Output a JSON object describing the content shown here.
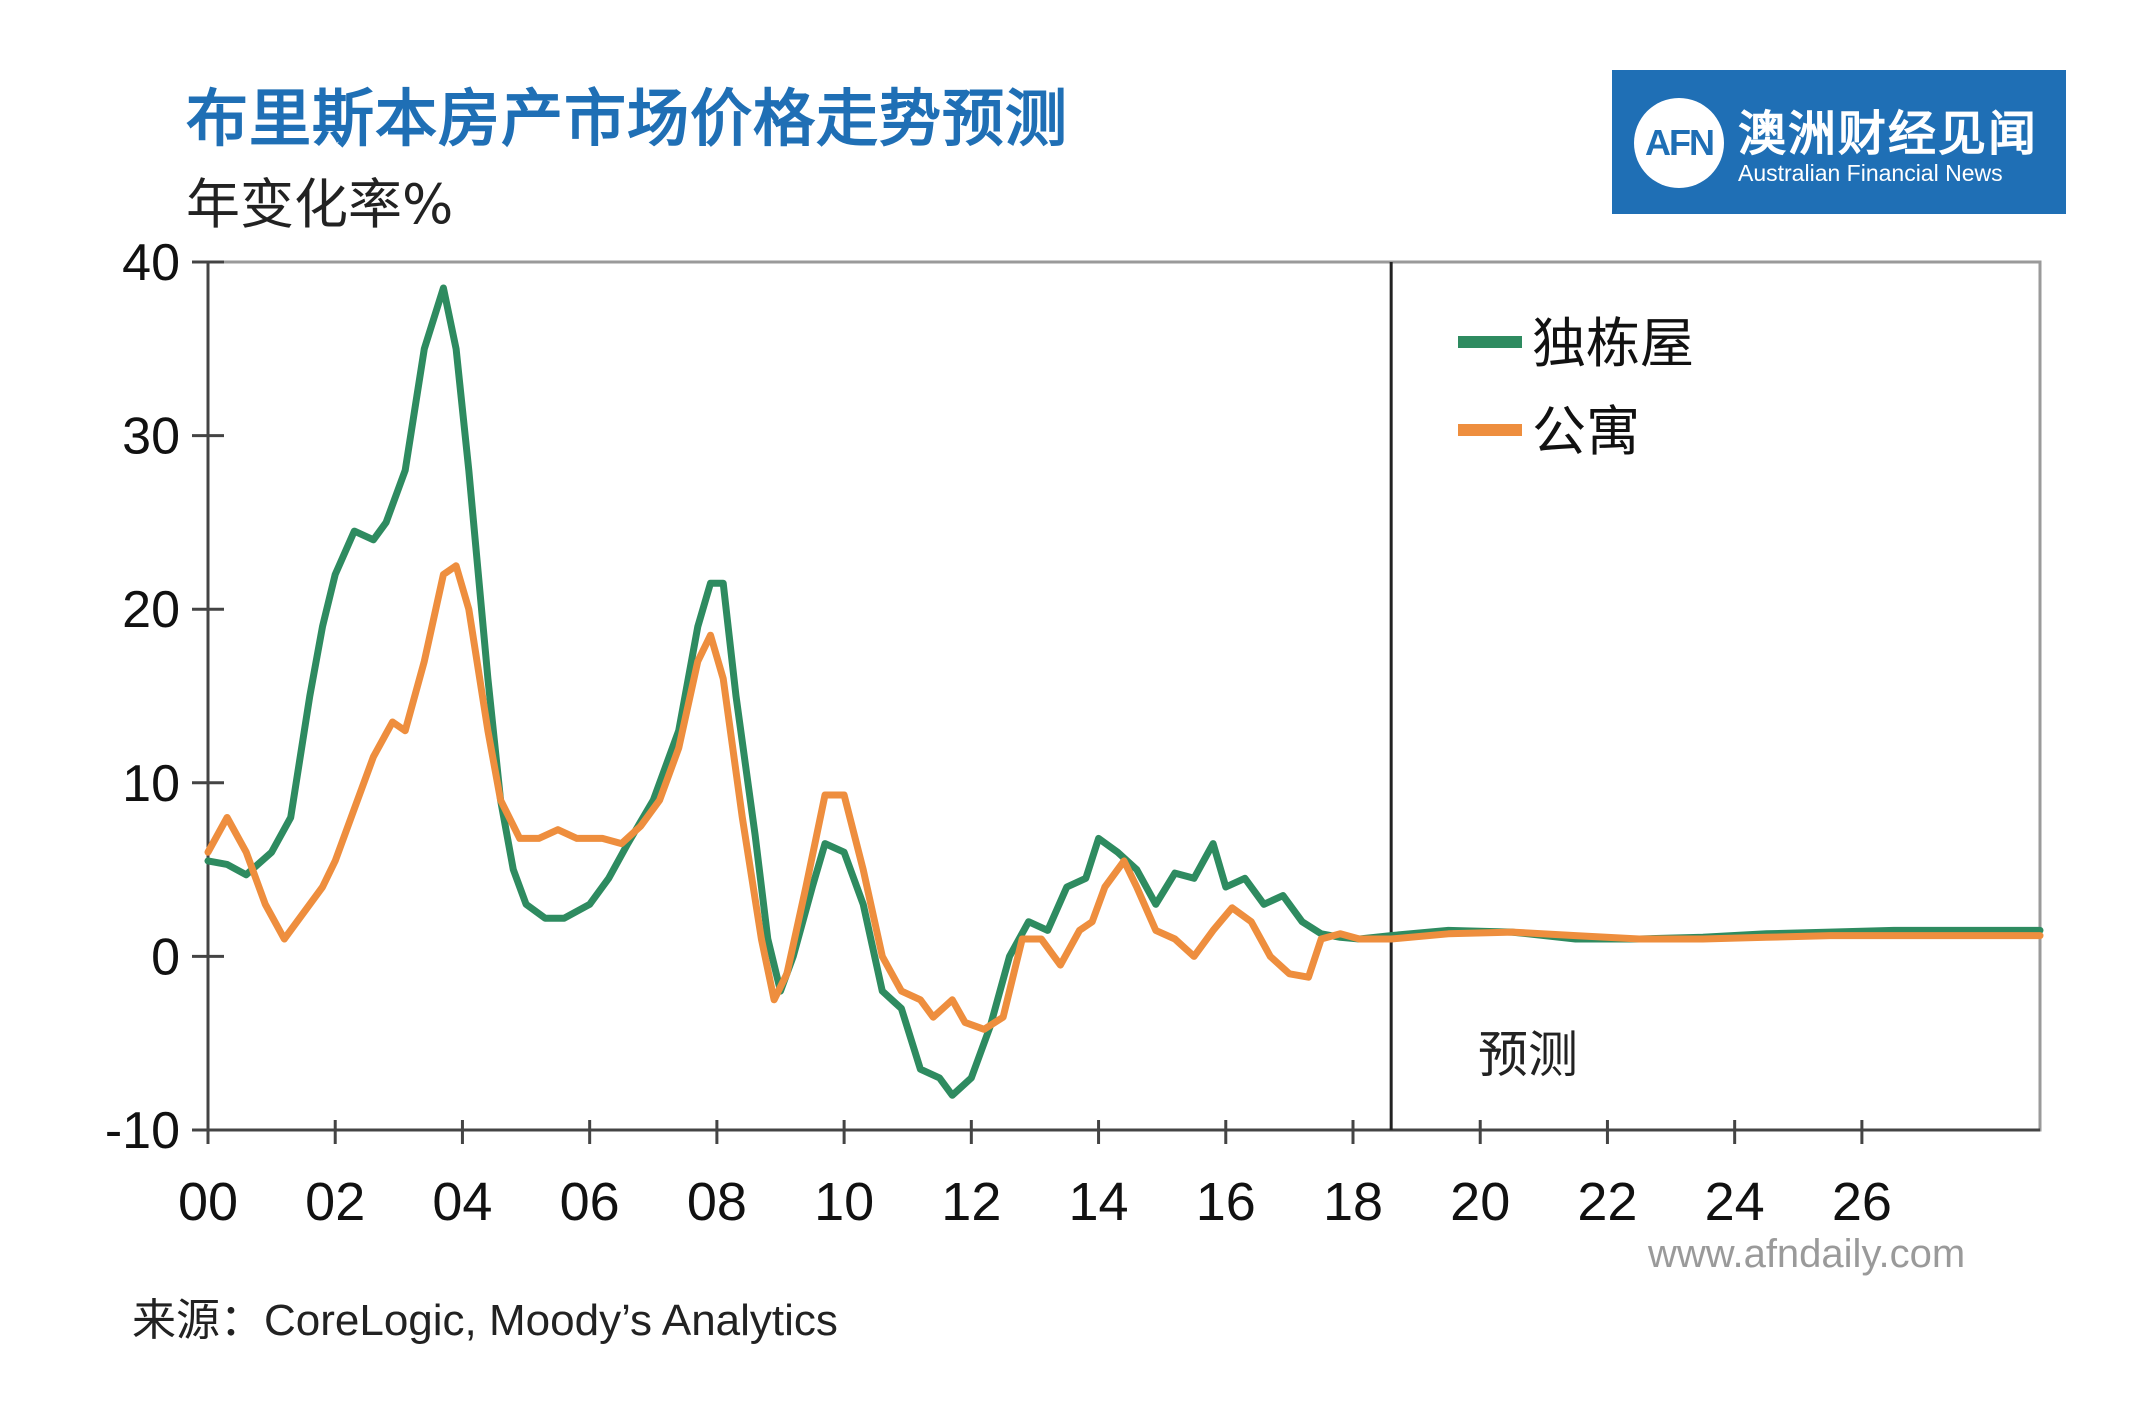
{
  "header": {
    "title": "布里斯本房产市场价格走势预测",
    "subtitle": "年变化率%"
  },
  "logo": {
    "mark": "AFN",
    "name_cn": "澳洲财经见闻",
    "name_en": "Australian Financial News"
  },
  "colors": {
    "house": "#2e8b60",
    "unit": "#ee8e3e",
    "title": "#1f6fb5",
    "grid": "#999999"
  },
  "chart_data": {
    "type": "line",
    "title": "布里斯本房产市场价格走势预测",
    "ylabel": "年变化率%",
    "xlim": [
      2000,
      2028.8
    ],
    "ylim": [
      -10,
      40
    ],
    "x_ticks": [
      2000,
      2002,
      2004,
      2006,
      2008,
      2010,
      2012,
      2014,
      2016,
      2018,
      2020,
      2022,
      2024,
      2026
    ],
    "x_tick_labels": [
      "00",
      "02",
      "04",
      "06",
      "08",
      "10",
      "12",
      "14",
      "16",
      "18",
      "20",
      "22",
      "24",
      "26"
    ],
    "y_ticks": [
      -10,
      0,
      10,
      20,
      30,
      40
    ],
    "y_tick_labels": [
      "-10",
      "0",
      "10",
      "20",
      "30",
      "40"
    ],
    "grid": true,
    "legend_position": "top-right",
    "forecast_start": 2018.6,
    "forecast_label": "预测",
    "series": [
      {
        "name": "独栋屋",
        "color": "#2e8b60",
        "points": [
          [
            2000,
            5.5
          ],
          [
            2000.3,
            5.3
          ],
          [
            2000.6,
            4.7
          ],
          [
            2001,
            6
          ],
          [
            2001.3,
            8
          ],
          [
            2001.6,
            15
          ],
          [
            2001.8,
            19
          ],
          [
            2002,
            22
          ],
          [
            2002.3,
            24.5
          ],
          [
            2002.6,
            24
          ],
          [
            2002.8,
            25
          ],
          [
            2003.1,
            28
          ],
          [
            2003.4,
            35
          ],
          [
            2003.7,
            38.5
          ],
          [
            2003.9,
            35
          ],
          [
            2004.1,
            28
          ],
          [
            2004.4,
            16
          ],
          [
            2004.6,
            9
          ],
          [
            2004.8,
            5
          ],
          [
            2005,
            3
          ],
          [
            2005.3,
            2.2
          ],
          [
            2005.6,
            2.2
          ],
          [
            2006,
            3
          ],
          [
            2006.3,
            4.5
          ],
          [
            2006.6,
            6.5
          ],
          [
            2007,
            9
          ],
          [
            2007.4,
            13
          ],
          [
            2007.7,
            19
          ],
          [
            2007.9,
            21.5
          ],
          [
            2008.1,
            21.5
          ],
          [
            2008.3,
            15
          ],
          [
            2008.6,
            7
          ],
          [
            2008.8,
            1
          ],
          [
            2009,
            -2
          ],
          [
            2009.2,
            0
          ],
          [
            2009.5,
            4
          ],
          [
            2009.7,
            6.5
          ],
          [
            2010,
            6
          ],
          [
            2010.3,
            3
          ],
          [
            2010.6,
            -2
          ],
          [
            2010.9,
            -3
          ],
          [
            2011.2,
            -6.5
          ],
          [
            2011.5,
            -7
          ],
          [
            2011.7,
            -8
          ],
          [
            2012,
            -7
          ],
          [
            2012.3,
            -4
          ],
          [
            2012.6,
            0
          ],
          [
            2012.9,
            2
          ],
          [
            2013.2,
            1.5
          ],
          [
            2013.5,
            4
          ],
          [
            2013.8,
            4.5
          ],
          [
            2014,
            6.8
          ],
          [
            2014.3,
            6
          ],
          [
            2014.6,
            5
          ],
          [
            2014.9,
            3
          ],
          [
            2015.2,
            4.8
          ],
          [
            2015.5,
            4.5
          ],
          [
            2015.8,
            6.5
          ],
          [
            2016,
            4
          ],
          [
            2016.3,
            4.5
          ],
          [
            2016.6,
            3
          ],
          [
            2016.9,
            3.5
          ],
          [
            2017.2,
            2
          ],
          [
            2017.5,
            1.3
          ],
          [
            2017.8,
            1.1
          ],
          [
            2018.1,
            1.0
          ],
          [
            2018.6,
            1.2
          ],
          [
            2019.5,
            1.5
          ],
          [
            2020.5,
            1.4
          ],
          [
            2021.5,
            1.0
          ],
          [
            2022.5,
            1.0
          ],
          [
            2023.5,
            1.1
          ],
          [
            2024.5,
            1.3
          ],
          [
            2025.5,
            1.4
          ],
          [
            2026.5,
            1.5
          ],
          [
            2028.8,
            1.5
          ]
        ]
      },
      {
        "name": "公寓",
        "color": "#ee8e3e",
        "points": [
          [
            2000,
            6
          ],
          [
            2000.3,
            8
          ],
          [
            2000.6,
            6
          ],
          [
            2000.9,
            3
          ],
          [
            2001.2,
            1
          ],
          [
            2001.5,
            2.5
          ],
          [
            2001.8,
            4
          ],
          [
            2002,
            5.5
          ],
          [
            2002.3,
            8.5
          ],
          [
            2002.6,
            11.5
          ],
          [
            2002.9,
            13.5
          ],
          [
            2003.1,
            13
          ],
          [
            2003.4,
            17
          ],
          [
            2003.7,
            22
          ],
          [
            2003.9,
            22.5
          ],
          [
            2004.1,
            20
          ],
          [
            2004.4,
            13
          ],
          [
            2004.6,
            9
          ],
          [
            2004.9,
            6.8
          ],
          [
            2005.2,
            6.8
          ],
          [
            2005.5,
            7.3
          ],
          [
            2005.8,
            6.8
          ],
          [
            2006.2,
            6.8
          ],
          [
            2006.5,
            6.5
          ],
          [
            2006.8,
            7.5
          ],
          [
            2007.1,
            9
          ],
          [
            2007.4,
            12
          ],
          [
            2007.7,
            17
          ],
          [
            2007.9,
            18.5
          ],
          [
            2008.1,
            16
          ],
          [
            2008.4,
            8
          ],
          [
            2008.7,
            1
          ],
          [
            2008.9,
            -2.5
          ],
          [
            2009.1,
            -1
          ],
          [
            2009.4,
            4
          ],
          [
            2009.7,
            9.3
          ],
          [
            2010,
            9.3
          ],
          [
            2010.3,
            5
          ],
          [
            2010.6,
            0
          ],
          [
            2010.9,
            -2
          ],
          [
            2011.2,
            -2.5
          ],
          [
            2011.4,
            -3.5
          ],
          [
            2011.7,
            -2.5
          ],
          [
            2011.9,
            -3.8
          ],
          [
            2012.2,
            -4.2
          ],
          [
            2012.5,
            -3.5
          ],
          [
            2012.8,
            1
          ],
          [
            2013.1,
            1
          ],
          [
            2013.4,
            -0.5
          ],
          [
            2013.7,
            1.5
          ],
          [
            2013.9,
            2
          ],
          [
            2014.1,
            4
          ],
          [
            2014.4,
            5.5
          ],
          [
            2014.6,
            4
          ],
          [
            2014.9,
            1.5
          ],
          [
            2015.2,
            1
          ],
          [
            2015.5,
            0
          ],
          [
            2015.8,
            1.5
          ],
          [
            2016.1,
            2.8
          ],
          [
            2016.4,
            2
          ],
          [
            2016.7,
            0
          ],
          [
            2017,
            -1
          ],
          [
            2017.3,
            -1.2
          ],
          [
            2017.5,
            1
          ],
          [
            2017.8,
            1.3
          ],
          [
            2018.1,
            1.0
          ],
          [
            2018.6,
            1.0
          ],
          [
            2019.5,
            1.3
          ],
          [
            2020.5,
            1.4
          ],
          [
            2021.5,
            1.2
          ],
          [
            2022.5,
            1.0
          ],
          [
            2023.5,
            1.0
          ],
          [
            2024.5,
            1.1
          ],
          [
            2025.5,
            1.2
          ],
          [
            2026.5,
            1.2
          ],
          [
            2028.8,
            1.2
          ]
        ]
      }
    ]
  },
  "source": "来源：CoreLogic, Moody’s Analytics",
  "watermark": "www.afndaily.com"
}
